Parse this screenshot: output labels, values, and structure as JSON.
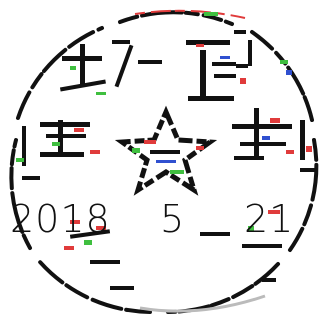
{
  "stamp": {
    "date": {
      "year": "2018",
      "month": "5",
      "day": "21"
    },
    "colors": {
      "ink": "#111111",
      "accent_red": "#e03b3b",
      "accent_green": "#3fbf3f",
      "accent_blue": "#3050d0"
    }
  }
}
